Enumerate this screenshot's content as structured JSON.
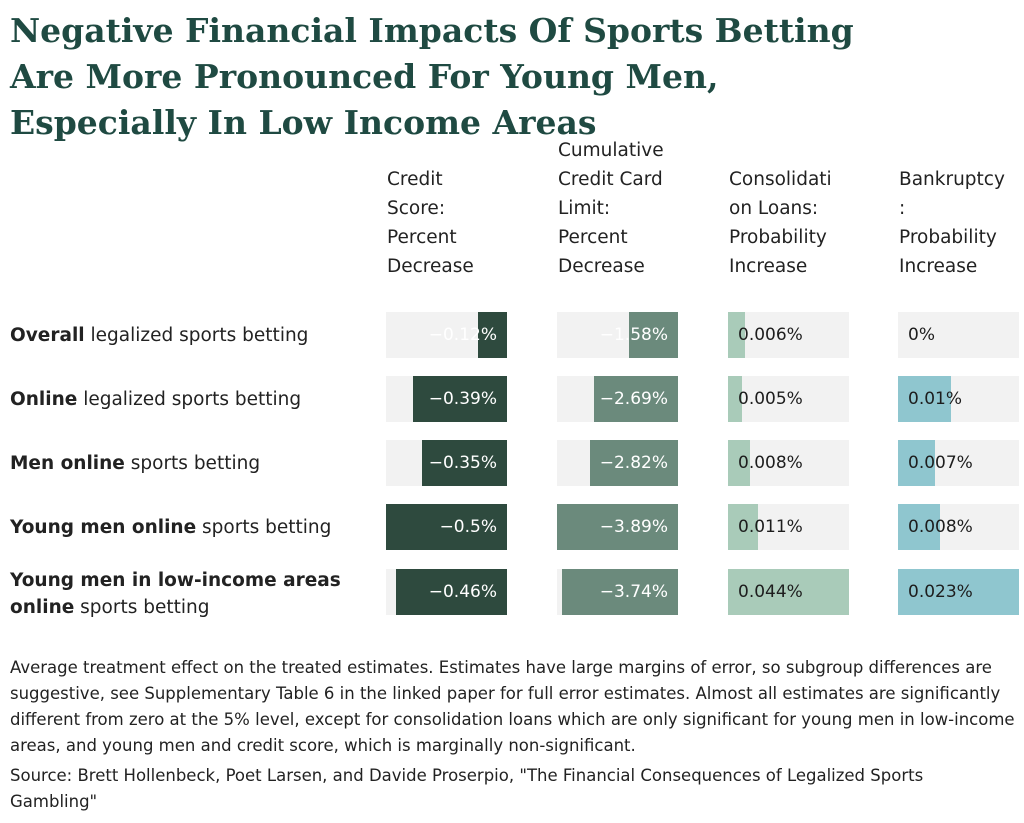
{
  "title_lines": [
    "Negative Financial Impacts Of Sports Betting",
    "Are More Pronounced For Young Men,",
    "Especially In Low Income Areas"
  ],
  "chart_data": {
    "type": "table",
    "columns": [
      {
        "header_lines": [
          "Credit",
          "Score:",
          "Percent",
          "Decrease"
        ],
        "color": "#2e4a3e",
        "max": 0.5,
        "direction": "negative"
      },
      {
        "header_lines": [
          "Cumulative",
          "Credit Card",
          "Limit:",
          "Percent",
          "Decrease"
        ],
        "color": "#6b8a7c",
        "max": 3.89,
        "direction": "negative"
      },
      {
        "header_lines": [
          "Consolidati",
          "on Loans:",
          "Probability",
          "Increase"
        ],
        "color": "#a9cbb9",
        "max": 0.044,
        "direction": "positive"
      },
      {
        "header_lines": [
          "Bankruptcy",
          ":",
          "Probability",
          "Increase"
        ],
        "color": "#8fc6cf",
        "max": 0.023,
        "direction": "positive"
      }
    ],
    "rows": [
      {
        "bold": "Overall",
        "rest": " legalized sports betting",
        "values": [
          -0.12,
          -1.58,
          0.006,
          0
        ],
        "labels": [
          "−0.12%",
          "−1.58%",
          "0.006%",
          "0%"
        ]
      },
      {
        "bold": "Online",
        "rest": " legalized sports betting",
        "values": [
          -0.39,
          -2.69,
          0.005,
          0.01
        ],
        "labels": [
          "−0.39%",
          "−2.69%",
          "0.005%",
          "0.01%"
        ]
      },
      {
        "bold": "Men online",
        "rest": " sports betting",
        "values": [
          -0.35,
          -2.82,
          0.008,
          0.007
        ],
        "labels": [
          "−0.35%",
          "−2.82%",
          "0.008%",
          "0.007%"
        ]
      },
      {
        "bold": "Young men online",
        "rest": " sports betting",
        "values": [
          -0.5,
          -3.89,
          0.011,
          0.008
        ],
        "labels": [
          "−0.5%",
          "−3.89%",
          "0.011%",
          "0.008%"
        ]
      },
      {
        "bold": "Young men in low-income areas online",
        "rest": " sports betting",
        "values": [
          -0.46,
          -3.74,
          0.044,
          0.023
        ],
        "labels": [
          "−0.46%",
          "−3.74%",
          "0.044%",
          "0.023%"
        ]
      }
    ]
  },
  "note": "Average treatment effect on the treated estimates. Estimates have large margins of error, so subgroup differences are suggestive, see Supplementary Table 6 in the linked paper for full error estimates. Almost all estimates are significantly different from zero at the 5% level, except for consolidation loans which are only significant for young men in low-income areas, and young men and credit score, which is marginally non-significant.",
  "source": "Source: Brett Hollenbeck, Poet Larsen, and Davide Proserpio, \"The Financial Consequences of Legalized Sports Gambling\""
}
